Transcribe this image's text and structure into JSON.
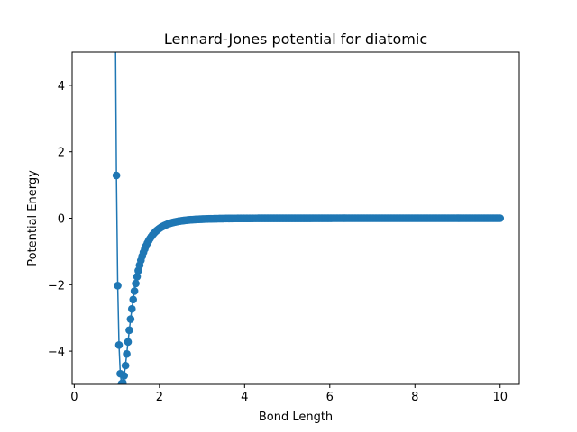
{
  "chart_data": {
    "type": "line",
    "title": "Lennard-Jones potential for diatomic",
    "xlabel": "Bond Length",
    "ylabel": "Potential Energy",
    "xlim": [
      -0.05,
      10.45
    ],
    "ylim": [
      -5,
      5
    ],
    "x_ticks": [
      0,
      2,
      4,
      6,
      8,
      10
    ],
    "x_tick_labels": [
      "0",
      "2",
      "4",
      "6",
      "8",
      "10"
    ],
    "y_ticks": [
      -4,
      -2,
      0,
      2,
      4
    ],
    "y_tick_labels": [
      "−4",
      "−2",
      "0",
      "2",
      "4"
    ],
    "grid": false,
    "legend": "none",
    "line_color": "#1f77b4",
    "marker": "circle",
    "series": [
      {
        "formula": "4*eps*((sigma/r)^12 - (sigma/r)^6)",
        "eps": 5,
        "sigma": 1,
        "x_start": 0.96,
        "x_end": 10,
        "n_points": 300
      }
    ]
  }
}
